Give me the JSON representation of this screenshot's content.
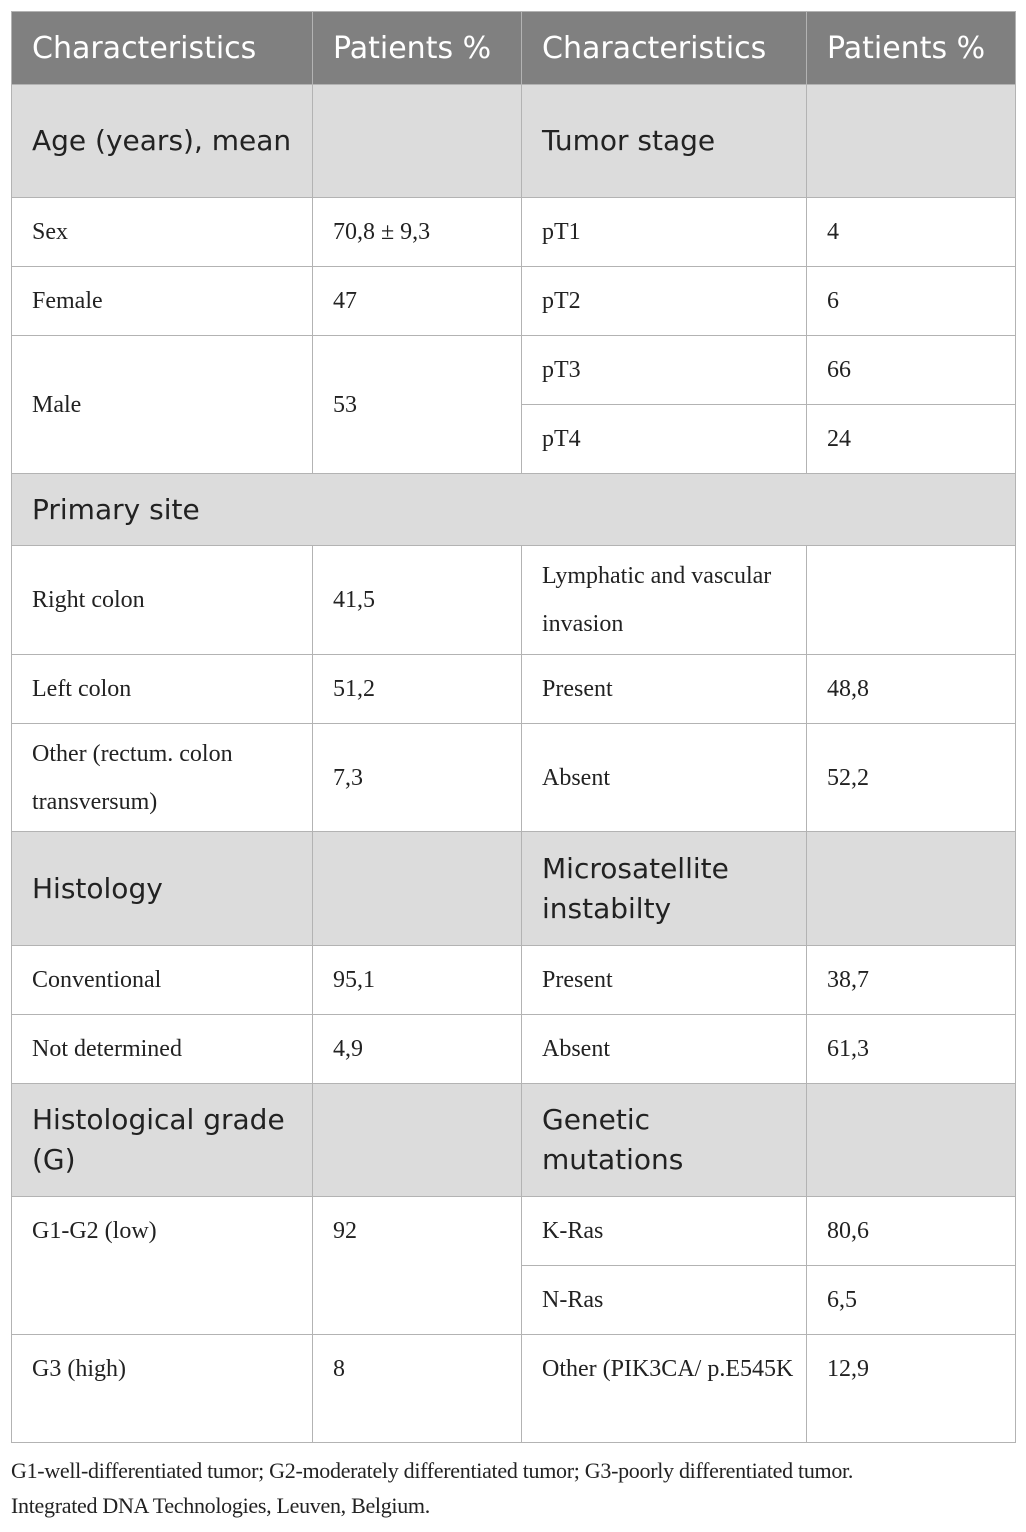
{
  "header": [
    "Characteristics",
    "Patients %",
    "Characteristics",
    "Patients %"
  ],
  "age": {
    "label": "Age (years), mean"
  },
  "sex": {
    "label": "Sex",
    "value": "70,8 ± 9,3"
  },
  "female": {
    "label": "Female",
    "value": "47"
  },
  "male": {
    "label": "Male",
    "value": "53"
  },
  "tumor_stage": {
    "label": "Tumor stage",
    "rows": [
      {
        "label": "pT1",
        "value": "4"
      },
      {
        "label": "pT2",
        "value": "6"
      },
      {
        "label": "pT3",
        "value": "66"
      },
      {
        "label": "pT4",
        "value": "24"
      }
    ]
  },
  "primary_site": {
    "label": "Primary site",
    "rows": [
      {
        "label": "Right colon",
        "value": "41,5"
      },
      {
        "label": "Left colon",
        "value": "51,2"
      },
      {
        "label": "Other (rectum. colon transversum)",
        "value": "7,3"
      }
    ]
  },
  "invasion": {
    "label": "Lymphatic and vascular invasion",
    "rows": [
      {
        "label": "Present",
        "value": "48,8"
      },
      {
        "label": "Absent",
        "value": "52,2"
      }
    ]
  },
  "histology": {
    "label": "Histology",
    "rows": [
      {
        "label": "Conventional",
        "value": "95,1"
      },
      {
        "label": "Not determined",
        "value": "4,9"
      }
    ]
  },
  "msi": {
    "label": "Microsatellite instabilty",
    "rows": [
      {
        "label": "Present",
        "value": "38,7"
      },
      {
        "label": "Absent",
        "value": "61,3"
      }
    ]
  },
  "grade": {
    "label": "Histological grade (G)",
    "rows": [
      {
        "label": "G1-G2 (low)",
        "value": "92"
      },
      {
        "label": "G3 (high)",
        "value": "8"
      }
    ]
  },
  "mutations": {
    "label": "Genetic mutations",
    "rows": [
      {
        "label": "K-Ras",
        "value": "80,6"
      },
      {
        "label": "N-Ras",
        "value": "6,5"
      },
      {
        "label": "Other (PIK3CA/ p.E545K",
        "value": "12,9"
      }
    ]
  },
  "footnote": [
    "G1-well-differentiated tumor; G2-moderately differentiated tumor; G3-poorly differentiated tumor.",
    "Integrated DNA Technologies, Leuven, Belgium."
  ]
}
